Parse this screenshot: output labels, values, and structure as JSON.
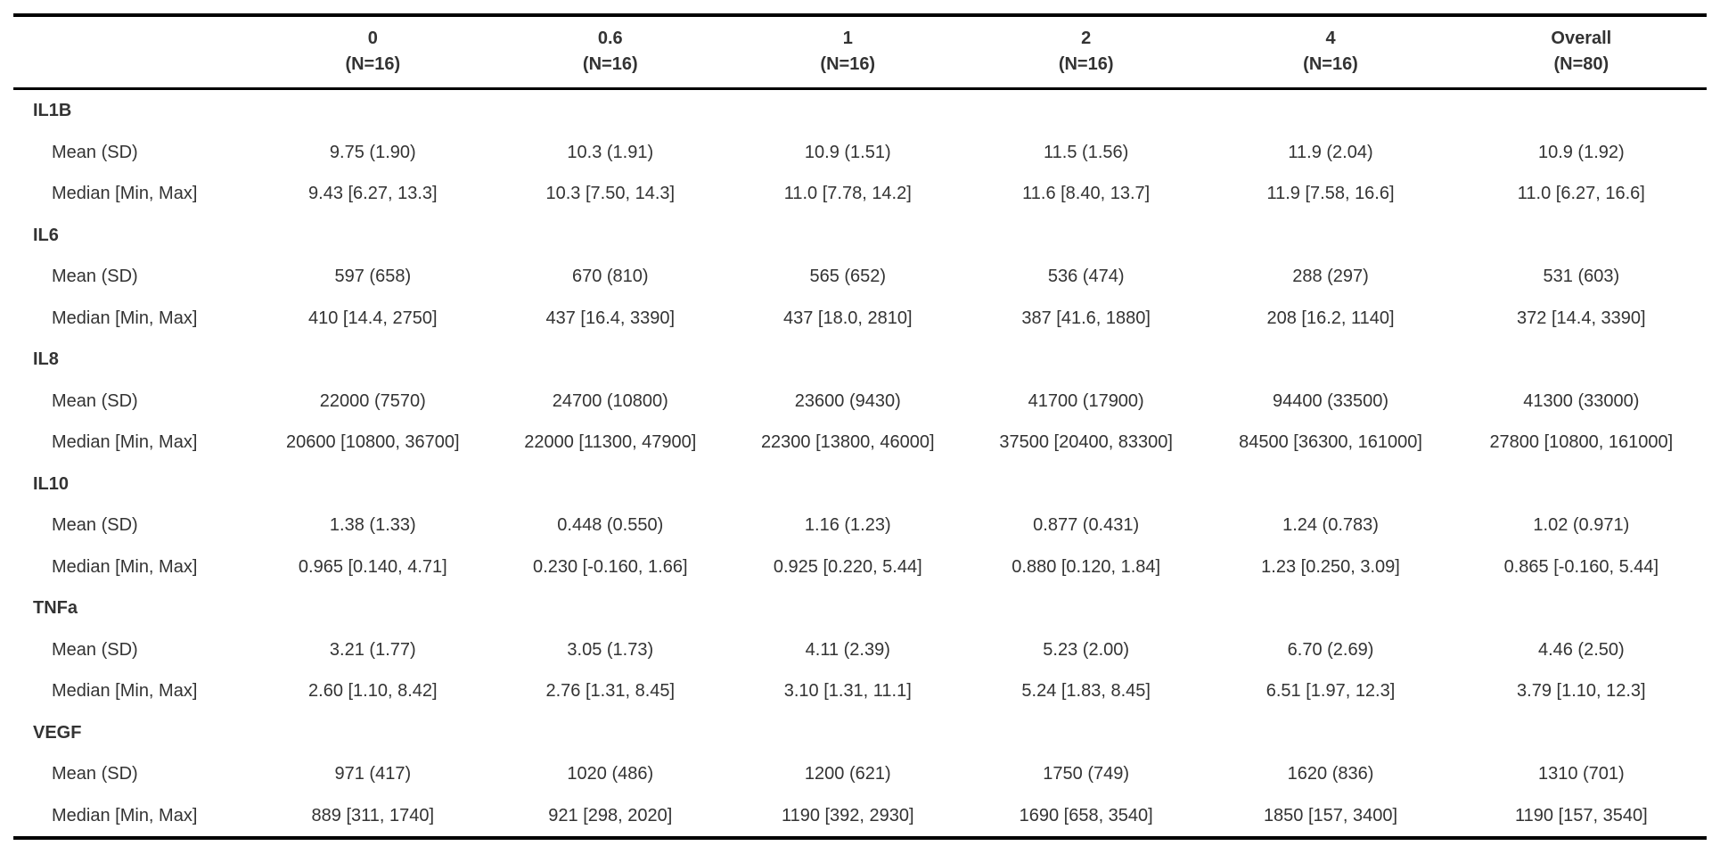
{
  "table": {
    "columns": [
      {
        "label": "0",
        "n": "(N=16)"
      },
      {
        "label": "0.6",
        "n": "(N=16)"
      },
      {
        "label": "1",
        "n": "(N=16)"
      },
      {
        "label": "2",
        "n": "(N=16)"
      },
      {
        "label": "4",
        "n": "(N=16)"
      },
      {
        "label": "Overall",
        "n": "(N=80)"
      }
    ],
    "row_labels": {
      "mean": "Mean (SD)",
      "median": "Median [Min, Max]"
    },
    "groups": [
      {
        "name": "IL1B",
        "mean": [
          "9.75 (1.90)",
          "10.3 (1.91)",
          "10.9 (1.51)",
          "11.5 (1.56)",
          "11.9 (2.04)",
          "10.9 (1.92)"
        ],
        "median": [
          "9.43 [6.27, 13.3]",
          "10.3 [7.50, 14.3]",
          "11.0 [7.78, 14.2]",
          "11.6 [8.40, 13.7]",
          "11.9 [7.58, 16.6]",
          "11.0 [6.27, 16.6]"
        ]
      },
      {
        "name": "IL6",
        "mean": [
          "597 (658)",
          "670 (810)",
          "565 (652)",
          "536 (474)",
          "288 (297)",
          "531 (603)"
        ],
        "median": [
          "410 [14.4, 2750]",
          "437 [16.4, 3390]",
          "437 [18.0, 2810]",
          "387 [41.6, 1880]",
          "208 [16.2, 1140]",
          "372 [14.4, 3390]"
        ]
      },
      {
        "name": "IL8",
        "mean": [
          "22000 (7570)",
          "24700 (10800)",
          "23600 (9430)",
          "41700 (17900)",
          "94400 (33500)",
          "41300 (33000)"
        ],
        "median": [
          "20600 [10800, 36700]",
          "22000 [11300, 47900]",
          "22300 [13800, 46000]",
          "37500 [20400, 83300]",
          "84500 [36300, 161000]",
          "27800 [10800, 161000]"
        ]
      },
      {
        "name": "IL10",
        "mean": [
          "1.38 (1.33)",
          "0.448 (0.550)",
          "1.16 (1.23)",
          "0.877 (0.431)",
          "1.24 (0.783)",
          "1.02 (0.971)"
        ],
        "median": [
          "0.965 [0.140, 4.71]",
          "0.230 [-0.160, 1.66]",
          "0.925 [0.220, 5.44]",
          "0.880 [0.120, 1.84]",
          "1.23 [0.250, 3.09]",
          "0.865 [-0.160, 5.44]"
        ]
      },
      {
        "name": "TNFa",
        "mean": [
          "3.21 (1.77)",
          "3.05 (1.73)",
          "4.11 (2.39)",
          "5.23 (2.00)",
          "6.70 (2.69)",
          "4.46 (2.50)"
        ],
        "median": [
          "2.60 [1.10, 8.42]",
          "2.76 [1.31, 8.45]",
          "3.10 [1.31, 11.1]",
          "5.24 [1.83, 8.45]",
          "6.51 [1.97, 12.3]",
          "3.79 [1.10, 12.3]"
        ]
      },
      {
        "name": "VEGF",
        "mean": [
          "971 (417)",
          "1020 (486)",
          "1200 (621)",
          "1750 (749)",
          "1620 (836)",
          "1310 (701)"
        ],
        "median": [
          "889 [311, 1740]",
          "921 [298, 2020]",
          "1190 [392, 2930]",
          "1690 [658, 3540]",
          "1850 [157, 3400]",
          "1190 [157, 3540]"
        ]
      }
    ],
    "colors": {
      "text": "#333333",
      "border": "#000000",
      "background": "#ffffff"
    }
  }
}
